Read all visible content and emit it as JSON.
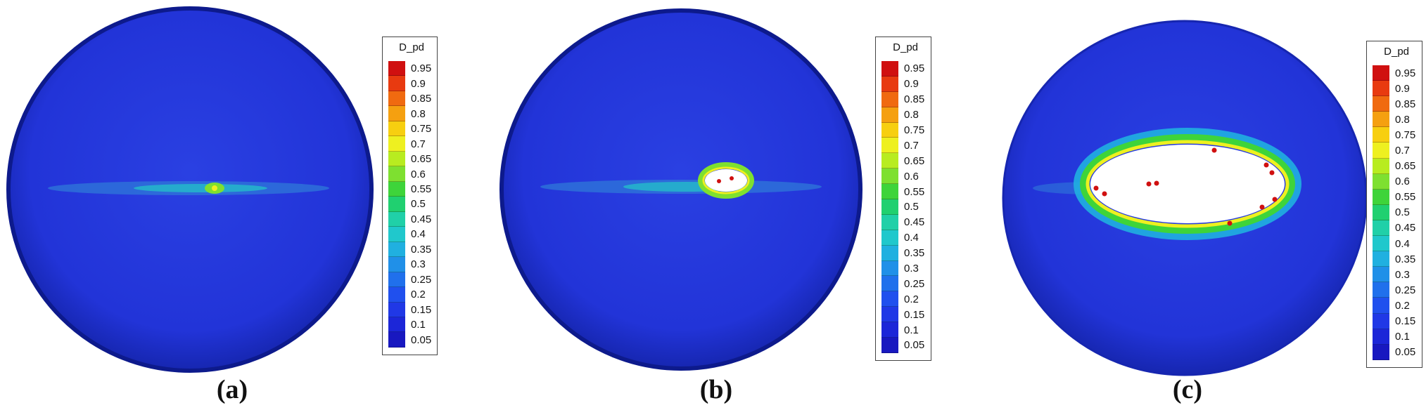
{
  "figure": {
    "panels": [
      {
        "id": "a",
        "caption": "(a)"
      },
      {
        "id": "b",
        "caption": "(b)"
      },
      {
        "id": "c",
        "caption": "(c)"
      }
    ],
    "legend": {
      "title": "D_pd",
      "ticks": [
        "0.95",
        "0.9",
        "0.85",
        "0.8",
        "0.75",
        "0.7",
        "0.65",
        "0.6",
        "0.55",
        "0.5",
        "0.45",
        "0.4",
        "0.35",
        "0.3",
        "0.25",
        "0.2",
        "0.15",
        "0.1",
        "0.05"
      ],
      "colors": [
        "#d01010",
        "#e83a10",
        "#f06a10",
        "#f5a010",
        "#f7cf10",
        "#eef020",
        "#b8ec20",
        "#7ee030",
        "#3ed43a",
        "#20d070",
        "#20d0a8",
        "#20c8cc",
        "#20b0e0",
        "#2090e8",
        "#2070ec",
        "#2050ee",
        "#2038e6",
        "#1c26d8",
        "#1818c0"
      ]
    },
    "colors": {
      "sphere_base": "#2234d8",
      "sphere_edge": "#0d1a8c",
      "crack_green": "#3ed43a",
      "crack_yellow": "#eef020",
      "damage_red": "#d01010"
    }
  }
}
